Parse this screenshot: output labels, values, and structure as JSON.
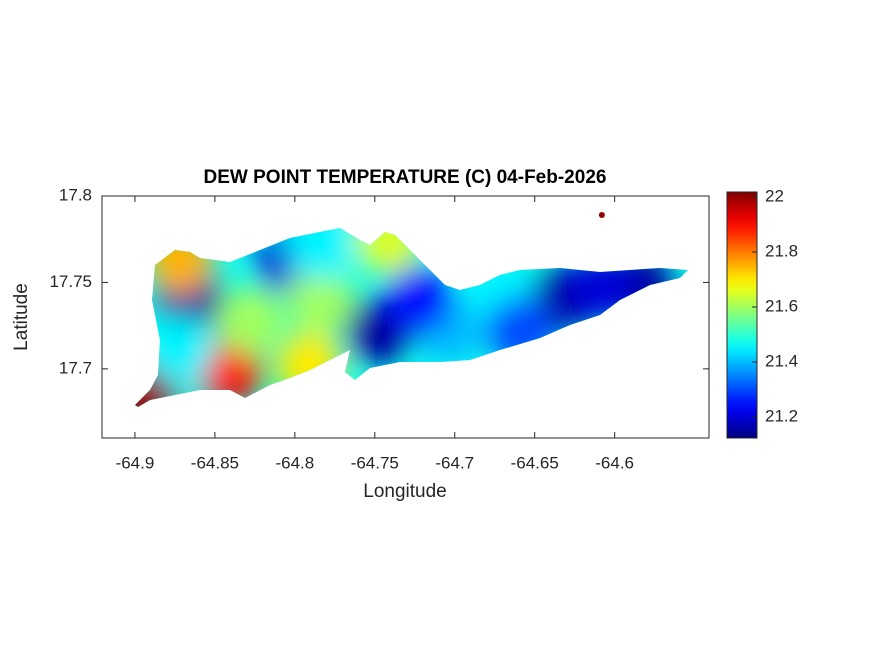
{
  "chart_data": {
    "type": "map",
    "title": "DEW POINT TEMPERATURE (C) 04-Feb-2026",
    "x_label": "Longitude",
    "y_label": "Latitude",
    "xlim": [
      -64.9206,
      -64.541
    ],
    "xticks": [
      -64.9,
      -64.85,
      -64.8,
      -64.75,
      -64.7,
      -64.65,
      -64.6
    ],
    "ylim": [
      17.66,
      17.8
    ],
    "yticks": [
      17.7,
      17.75,
      17.8
    ],
    "colormap": "jet",
    "clim": [
      21.124,
      22.018
    ],
    "cticks": [
      21.2,
      21.4,
      21.6,
      21.8,
      22
    ],
    "points": {
      "lon": [
        -64.866,
        -64.803,
        -64.747,
        -64.634,
        -64.584,
        -64.841,
        -64.894,
        -64.872,
        -64.741,
        -64.828,
        -64.784,
        -64.703,
        -64.672,
        -64.784,
        -64.722,
        -64.872,
        -64.791,
        -64.609,
        -64.659,
        -64.608
      ],
      "lat": [
        17.74,
        17.762,
        17.722,
        17.74,
        17.748,
        17.699,
        17.685,
        17.763,
        17.774,
        17.728,
        17.74,
        17.722,
        17.745,
        17.771,
        17.74,
        17.711,
        17.702,
        17.747,
        17.722,
        17.789
      ],
      "values": [
        21.15,
        21.2,
        21.15,
        21.15,
        21.15,
        21.9,
        22.0,
        21.75,
        21.65,
        21.6,
        21.6,
        21.4,
        21.45,
        21.45,
        21.25,
        21.45,
        21.7,
        21.2,
        21.3,
        22.0
      ]
    }
  }
}
